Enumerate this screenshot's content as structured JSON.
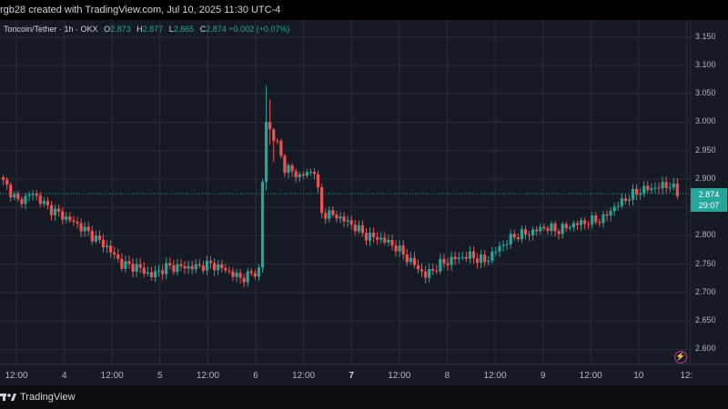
{
  "header": {
    "text": "rgb28 created with TradingView.com, Jul 10, 2025 11:30 UTC-4"
  },
  "legend": {
    "symbol": "Toncoin/Tether · 1h · OKX",
    "o_label": "O",
    "o_value": "2.873",
    "h_label": "H",
    "h_value": "2.877",
    "l_label": "L",
    "l_value": "2.865",
    "c_label": "C",
    "c_value": "2.874",
    "change": "+0.002 (+0.07%)"
  },
  "price_badge": {
    "price": "2.874",
    "countdown": "29:07",
    "color": "#26a69a"
  },
  "footer": {
    "brand": "TradingView"
  },
  "colors": {
    "up": "#26a69a",
    "down": "#ef5350",
    "background": "#161a25",
    "grid": "#2a2e39"
  },
  "chart_data": {
    "type": "candlestick",
    "title": "Toncoin/Tether · 1h · OKX",
    "ylim": [
      2.575,
      3.18
    ],
    "y_ticks": [
      "3.150",
      "3.100",
      "3.050",
      "3.000",
      "2.950",
      "2.900",
      "2.850",
      "2.800",
      "2.750",
      "2.700",
      "2.650",
      "2.600"
    ],
    "x_ticks": [
      {
        "label": "12:00",
        "day": false
      },
      {
        "label": "4",
        "day": false
      },
      {
        "label": "12:00",
        "day": false
      },
      {
        "label": "5",
        "day": false
      },
      {
        "label": "12:00",
        "day": false
      },
      {
        "label": "6",
        "day": false
      },
      {
        "label": "12:00",
        "day": false
      },
      {
        "label": "7",
        "day": true
      },
      {
        "label": "12:00",
        "day": false
      },
      {
        "label": "8",
        "day": false
      },
      {
        "label": "12:00",
        "day": false
      },
      {
        "label": "9",
        "day": false
      },
      {
        "label": "12:00",
        "day": false
      },
      {
        "label": "10",
        "day": false
      },
      {
        "label": "12:",
        "day": false
      }
    ],
    "current_price": 2.874,
    "grid": true,
    "anchors": [
      [
        0,
        2.895
      ],
      [
        4,
        2.86
      ],
      [
        8,
        2.875
      ],
      [
        12,
        2.85
      ],
      [
        16,
        2.835
      ],
      [
        20,
        2.82
      ],
      [
        24,
        2.8
      ],
      [
        28,
        2.78
      ],
      [
        32,
        2.75
      ],
      [
        36,
        2.745
      ],
      [
        40,
        2.73
      ],
      [
        44,
        2.745
      ],
      [
        48,
        2.745
      ],
      [
        52,
        2.745
      ],
      [
        56,
        2.75
      ],
      [
        60,
        2.74
      ],
      [
        64,
        2.725
      ],
      [
        68,
        2.735
      ],
      [
        69,
        2.74
      ],
      [
        70,
        2.895
      ],
      [
        71,
        3.0
      ],
      [
        74,
        2.96
      ],
      [
        76,
        2.92
      ],
      [
        80,
        2.905
      ],
      [
        84,
        2.915
      ],
      [
        86,
        2.84
      ],
      [
        90,
        2.835
      ],
      [
        94,
        2.82
      ],
      [
        98,
        2.8
      ],
      [
        102,
        2.795
      ],
      [
        106,
        2.78
      ],
      [
        110,
        2.755
      ],
      [
        114,
        2.73
      ],
      [
        118,
        2.75
      ],
      [
        122,
        2.76
      ],
      [
        126,
        2.765
      ],
      [
        130,
        2.755
      ],
      [
        134,
        2.78
      ],
      [
        138,
        2.8
      ],
      [
        142,
        2.805
      ],
      [
        146,
        2.815
      ],
      [
        150,
        2.81
      ],
      [
        154,
        2.82
      ],
      [
        158,
        2.825
      ],
      [
        162,
        2.83
      ],
      [
        164,
        2.845
      ],
      [
        168,
        2.865
      ],
      [
        172,
        2.88
      ],
      [
        176,
        2.885
      ],
      [
        180,
        2.89
      ],
      [
        182,
        2.874
      ]
    ],
    "spikes": [
      {
        "index": 71,
        "high": 3.065,
        "low": 2.88
      },
      {
        "index": 72,
        "high": 3.04,
        "low": 2.96
      },
      {
        "index": 73,
        "high": 2.99,
        "low": 2.93
      }
    ]
  }
}
